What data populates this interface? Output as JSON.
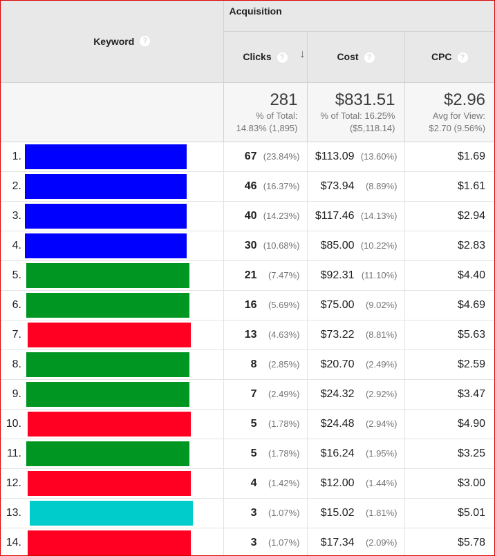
{
  "header": {
    "keyword_label": "Keyword",
    "help_glyph": "?",
    "group_label": "Acquisition",
    "clicks_label": "Clicks",
    "cost_label": "Cost",
    "cpc_label": "CPC",
    "sort_arrow": "↓"
  },
  "summary": {
    "clicks_total": "281",
    "clicks_sub1": "% of Total:",
    "clicks_sub2": "14.83% (1,895)",
    "cost_total": "$831.51",
    "cost_sub1": "% of Total: 16.25%",
    "cost_sub2": "($5,118.14)",
    "cpc_total": "$2.96",
    "cpc_sub1": "Avg for View:",
    "cpc_sub2": "$2.70 (9.56%)"
  },
  "colors": {
    "blue": "#0000ff",
    "green": "#009622",
    "red": "#ff0022",
    "teal": "#00cccc",
    "frame_border": "#d90000"
  },
  "rows": [
    {
      "index": "1.",
      "color": "#0000ff",
      "clicks": "67",
      "clicks_pct": "(23.84%)",
      "cost": "$113.09",
      "cost_pct": "(13.60%)",
      "cpc": "$1.69"
    },
    {
      "index": "2.",
      "color": "#0000ff",
      "clicks": "46",
      "clicks_pct": "(16.37%)",
      "cost": "$73.94",
      "cost_pct": "(8.89%)",
      "cpc": "$1.61"
    },
    {
      "index": "3.",
      "color": "#0000ff",
      "clicks": "40",
      "clicks_pct": "(14.23%)",
      "cost": "$117.46",
      "cost_pct": "(14.13%)",
      "cpc": "$2.94"
    },
    {
      "index": "4.",
      "color": "#0000ff",
      "clicks": "30",
      "clicks_pct": "(10.68%)",
      "cost": "$85.00",
      "cost_pct": "(10.22%)",
      "cpc": "$2.83"
    },
    {
      "index": "5.",
      "color": "#009622",
      "clicks": "21",
      "clicks_pct": "(7.47%)",
      "cost": "$92.31",
      "cost_pct": "(11.10%)",
      "cpc": "$4.40"
    },
    {
      "index": "6.",
      "color": "#009622",
      "clicks": "16",
      "clicks_pct": "(5.69%)",
      "cost": "$75.00",
      "cost_pct": "(9.02%)",
      "cpc": "$4.69"
    },
    {
      "index": "7.",
      "color": "#ff0022",
      "clicks": "13",
      "clicks_pct": "(4.63%)",
      "cost": "$73.22",
      "cost_pct": "(8.81%)",
      "cpc": "$5.63"
    },
    {
      "index": "8.",
      "color": "#009622",
      "clicks": "8",
      "clicks_pct": "(2.85%)",
      "cost": "$20.70",
      "cost_pct": "(2.49%)",
      "cpc": "$2.59"
    },
    {
      "index": "9.",
      "color": "#009622",
      "clicks": "7",
      "clicks_pct": "(2.49%)",
      "cost": "$24.32",
      "cost_pct": "(2.92%)",
      "cpc": "$3.47"
    },
    {
      "index": "10.",
      "color": "#ff0022",
      "clicks": "5",
      "clicks_pct": "(1.78%)",
      "cost": "$24.48",
      "cost_pct": "(2.94%)",
      "cpc": "$4.90"
    },
    {
      "index": "11.",
      "color": "#009622",
      "clicks": "5",
      "clicks_pct": "(1.78%)",
      "cost": "$16.24",
      "cost_pct": "(1.95%)",
      "cpc": "$3.25"
    },
    {
      "index": "12.",
      "color": "#ff0022",
      "clicks": "4",
      "clicks_pct": "(1.42%)",
      "cost": "$12.00",
      "cost_pct": "(1.44%)",
      "cpc": "$3.00"
    },
    {
      "index": "13.",
      "color": "#00cccc",
      "clicks": "3",
      "clicks_pct": "(1.07%)",
      "cost": "$15.02",
      "cost_pct": "(1.81%)",
      "cpc": "$5.01"
    },
    {
      "index": "14.",
      "color": "#ff0022",
      "clicks": "3",
      "clicks_pct": "(1.07%)",
      "cost": "$17.34",
      "cost_pct": "(2.09%)",
      "cpc": "$5.78"
    }
  ]
}
